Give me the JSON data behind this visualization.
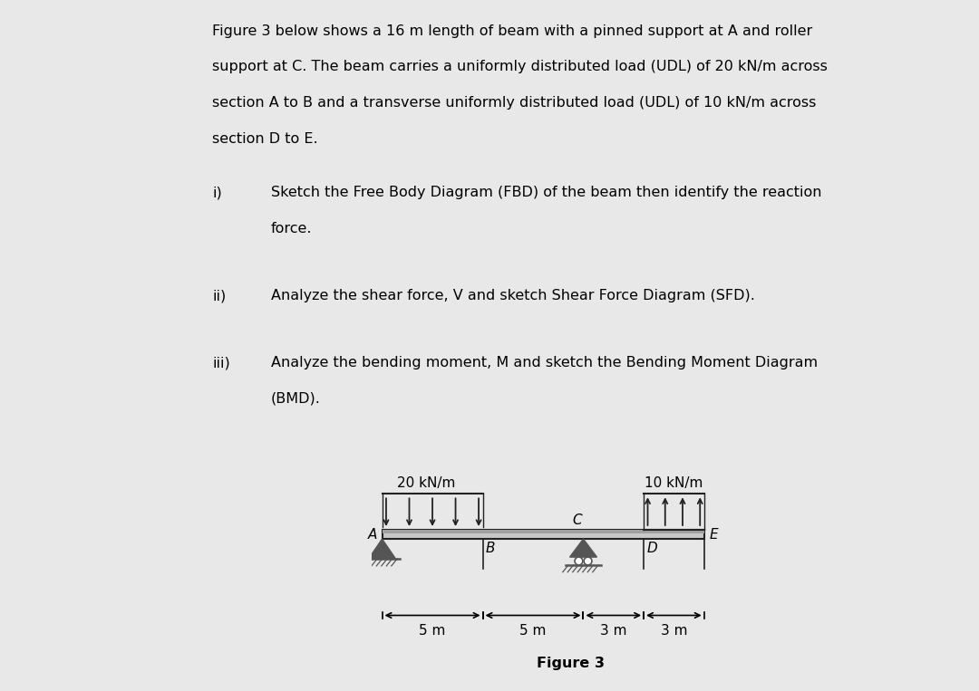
{
  "bg_color": "#e8e8e8",
  "page_color": "#ffffff",
  "text_color": "#000000",
  "para_line1": "Figure 3 below shows a 16 m length of beam with a pinned support at A and roller",
  "para_line2": "support at C. The beam carries a uniformly distributed load (UDL) of 20 kN/m across",
  "para_line3": "section A to B and a transverse uniformly distributed load (UDL) of 10 kN/m across",
  "para_line4": "section D to E.",
  "item_i_label": "i)",
  "item_i_line1": "Sketch the Free Body Diagram (FBD) of the beam then identify the reaction",
  "item_i_line2": "force.",
  "item_ii_label": "ii)",
  "item_ii_line1": "Analyze the shear force, V and sketch Shear Force Diagram (SFD).",
  "item_iii_label": "iii)",
  "item_iii_line1": "Analyze the bending moment, M and sketch the Bending Moment Diagram",
  "item_iii_line2": "(BMD).",
  "figure_caption": "Figure 3",
  "udl1_label": "20 kN/m",
  "udl2_label": "10 kN/m",
  "label_A": "A",
  "label_B": "B",
  "label_C": "C",
  "label_D": "D",
  "label_E": "E",
  "dim1": "5 m",
  "dim2": "5 m",
  "dim3": "3 m",
  "dim4": "3 m",
  "body_fontsize": 11.5,
  "diagram_fontsize": 11,
  "dim_fontsize": 11,
  "caption_fontsize": 11.5
}
